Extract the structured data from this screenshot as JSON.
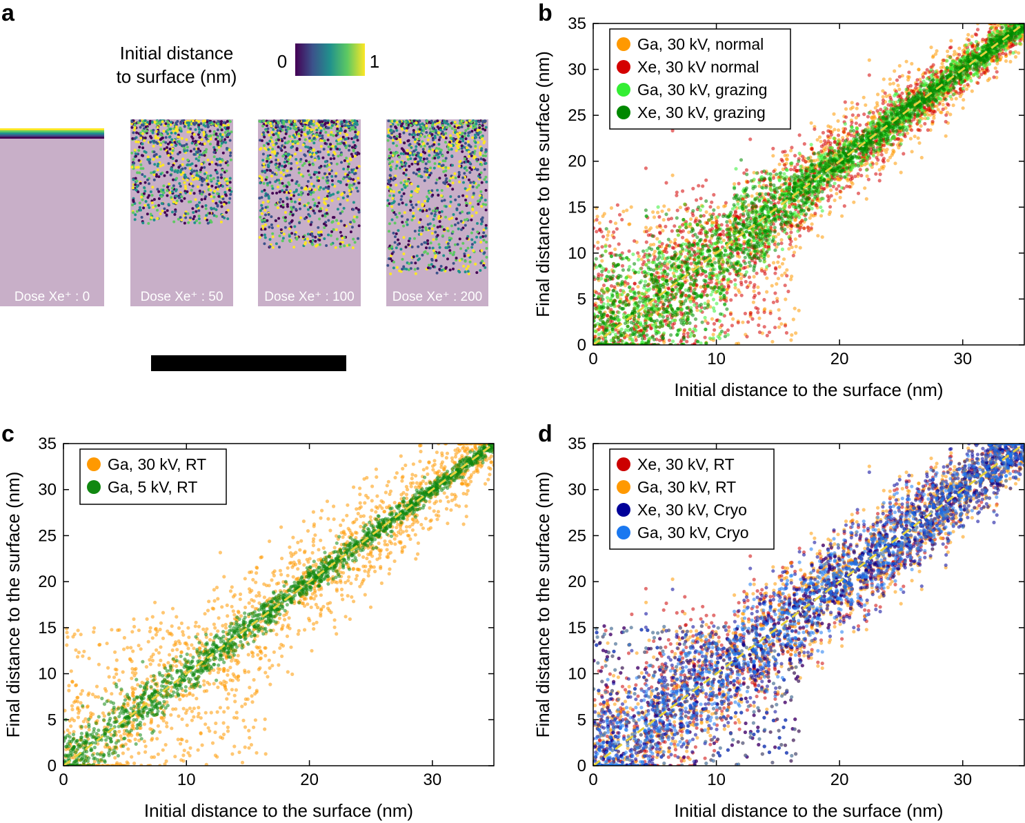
{
  "panel_a": {
    "label": "a",
    "colorbar_title_line1": "Initial distance",
    "colorbar_title_line2": "to surface (nm)",
    "colorbar_min": "0",
    "colorbar_max": "1",
    "colormap": [
      "#440154",
      "#3b528b",
      "#21918c",
      "#5ec962",
      "#fde725"
    ],
    "slab_color": "#c8afc8",
    "doses": [
      {
        "label": "Dose Xe⁺ : 0",
        "value": 0
      },
      {
        "label": "Dose Xe⁺ : 50",
        "value": 50
      },
      {
        "label": "Dose Xe⁺ : 100",
        "value": 100
      },
      {
        "label": "Dose Xe⁺ : 200",
        "value": 200
      }
    ]
  },
  "chart_data": [
    {
      "id": "b",
      "label": "b",
      "type": "scatter",
      "xlabel": "Initial distance to the surface (nm)",
      "ylabel": "Final distance to the surface (nm)",
      "xlim": [
        0,
        35
      ],
      "ylim": [
        0,
        35
      ],
      "xticks": [
        0,
        10,
        20,
        30
      ],
      "yticks": [
        0,
        5,
        10,
        15,
        20,
        25,
        30,
        35
      ],
      "reference_line": {
        "x": [
          0,
          35
        ],
        "y": [
          0,
          35
        ],
        "color": "#e6d23c",
        "style": "dashed"
      },
      "legend_position": "top-left",
      "series": [
        {
          "name": "Ga, 30 kV, normal",
          "color": "#ff9900",
          "spread_profile": [
            [
              0,
              4
            ],
            [
              10,
              3
            ],
            [
              20,
              2.4
            ],
            [
              35,
              1.6
            ]
          ],
          "depth_nm": 17
        },
        {
          "name": "Xe, 30 kV normal",
          "color": "#d40000",
          "spread_profile": [
            [
              0,
              6
            ],
            [
              10,
              4
            ],
            [
              20,
              2
            ],
            [
              35,
              1
            ]
          ],
          "depth_nm": 16
        },
        {
          "name": "Ga, 30 kV, grazing",
          "color": "#33ee33",
          "spread_profile": [
            [
              0,
              4
            ],
            [
              10,
              3
            ],
            [
              20,
              1.2
            ],
            [
              35,
              0.8
            ]
          ],
          "depth_nm": 11
        },
        {
          "name": "Xe, 30 kV, grazing",
          "color": "#008800",
          "spread_profile": [
            [
              0,
              4
            ],
            [
              10,
              3
            ],
            [
              20,
              0.8
            ],
            [
              35,
              0.5
            ]
          ],
          "depth_nm": 11
        }
      ]
    },
    {
      "id": "c",
      "label": "c",
      "type": "scatter",
      "xlabel": "Initial distance to the surface (nm)",
      "ylabel": "Final distance to the surface (nm)",
      "xlim": [
        0,
        35
      ],
      "ylim": [
        0,
        35
      ],
      "xticks": [
        0,
        10,
        20,
        30
      ],
      "yticks": [
        0,
        5,
        10,
        15,
        20,
        25,
        30,
        35
      ],
      "reference_line": {
        "x": [
          0,
          35
        ],
        "y": [
          0,
          35
        ],
        "color": "#e6d23c",
        "style": "dashed"
      },
      "legend_position": "top-left",
      "series": [
        {
          "name": "Ga, 30 kV, RT",
          "color": "#ff9900",
          "spread_profile": [
            [
              0,
              5
            ],
            [
              10,
              4
            ],
            [
              20,
              3
            ],
            [
              35,
              2
            ]
          ],
          "depth_nm": 17
        },
        {
          "name": "Ga, 5 kV, RT",
          "color": "#118811",
          "spread_profile": [
            [
              0,
              2
            ],
            [
              10,
              1
            ],
            [
              20,
              0.7
            ],
            [
              35,
              0.4
            ]
          ],
          "depth_nm": 4
        }
      ]
    },
    {
      "id": "d",
      "label": "d",
      "type": "scatter",
      "xlabel": "Initial distance to the surface (nm)",
      "ylabel": "Final distance to the surface (nm)",
      "xlim": [
        0,
        35
      ],
      "ylim": [
        0,
        35
      ],
      "xticks": [
        0,
        10,
        20,
        30
      ],
      "yticks": [
        0,
        5,
        10,
        15,
        20,
        25,
        30,
        35
      ],
      "reference_line": {
        "x": [
          0,
          35
        ],
        "y": [
          0,
          35
        ],
        "color": "#e6d23c",
        "style": "dashed"
      },
      "legend_position": "top-left",
      "series": [
        {
          "name": "Xe, 30 kV, RT",
          "color": "#cc0000",
          "spread_profile": [
            [
              0,
              6
            ],
            [
              10,
              4
            ],
            [
              20,
              2.5
            ],
            [
              35,
              1.5
            ]
          ],
          "depth_nm": 17
        },
        {
          "name": "Ga, 30 kV, RT",
          "color": "#ff9900",
          "spread_profile": [
            [
              0,
              4.5
            ],
            [
              10,
              3.5
            ],
            [
              20,
              2.8
            ],
            [
              35,
              2
            ]
          ],
          "depth_nm": 17
        },
        {
          "name": "Xe, 30 kV, Cryo",
          "color": "#000099",
          "spread_profile": [
            [
              0,
              4
            ],
            [
              10,
              3.3
            ],
            [
              20,
              2.6
            ],
            [
              35,
              2
            ]
          ],
          "depth_nm": 17
        },
        {
          "name": "Ga, 30 kV, Cryo",
          "color": "#1a78f0",
          "spread_profile": [
            [
              0,
              3
            ],
            [
              10,
              2.6
            ],
            [
              20,
              2.2
            ],
            [
              35,
              1.6
            ]
          ],
          "depth_nm": 17
        }
      ]
    }
  ]
}
